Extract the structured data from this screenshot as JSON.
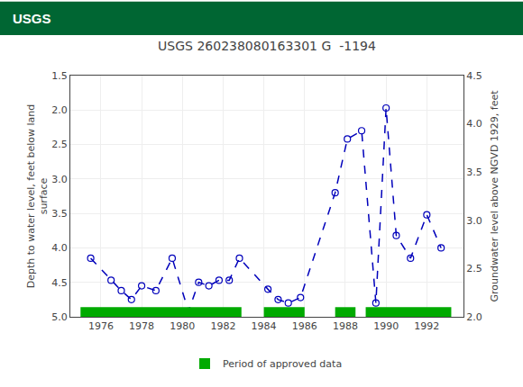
{
  "chart_data": {
    "type": "line",
    "title": "USGS 260238080163301 G  -1194",
    "annotations": [
      {
        "text": "USGS"
      }
    ],
    "ylabel": "Depth to water level, feet below land\nsurface",
    "y2label": "Groundwater level above NGVD 1929, feet",
    "x": [
      1975.5,
      1976.5,
      1977.0,
      1977.5,
      1978.0,
      1978.7,
      1979.5,
      1980.3,
      1980.8,
      1981.3,
      1981.8,
      1982.3,
      1982.8,
      1984.2,
      1984.7,
      1985.2,
      1985.8,
      1987.5,
      1988.1,
      1988.8,
      1989.5,
      1990.0,
      1990.5,
      1991.2,
      1992.0,
      1992.7
    ],
    "series": [
      {
        "values": [
          4.15,
          4.47,
          4.62,
          4.75,
          4.55,
          4.62,
          4.15,
          4.92,
          4.5,
          4.55,
          4.47,
          4.47,
          4.15,
          4.6,
          4.75,
          4.8,
          4.72,
          3.2,
          2.42,
          2.3,
          4.8,
          1.97,
          3.82,
          4.15,
          3.52,
          4.0
        ],
        "color": "#0000bb",
        "line_style": "dash",
        "marker": "circle-open"
      }
    ],
    "periods": {
      "name": "Period of approved data",
      "color": "#00aa00",
      "segments": [
        [
          1975.0,
          1982.9
        ],
        [
          1984.0,
          1986.0
        ],
        [
          1987.5,
          1988.5
        ],
        [
          1989.0,
          1993.2
        ]
      ]
    },
    "xlim": [
      1974.5,
      1993.8
    ],
    "xticks": [
      1976,
      1978,
      1980,
      1982,
      1984,
      1986,
      1988,
      1990,
      1992
    ],
    "ylim": [
      5.0,
      1.5
    ],
    "yticks": [
      1.5,
      {
        "value": 2.0,
        "label": "2.0"
      },
      2.5,
      {
        "value": 3.0,
        "label": "3.0"
      },
      3.5,
      {
        "value": 4.0,
        "label": "4.0"
      },
      4.5,
      {
        "value": 5.0,
        "label": "5.0"
      }
    ],
    "y2lim": [
      2.0,
      4.5
    ],
    "y2ticks": [
      4.5,
      {
        "value": 4.0,
        "label": "4.0"
      },
      3.5,
      {
        "value": 3.0,
        "label": "3.0"
      },
      2.5,
      {
        "value": 2.0,
        "label": "2.0"
      }
    ],
    "grid": true,
    "legend": "bottom"
  }
}
